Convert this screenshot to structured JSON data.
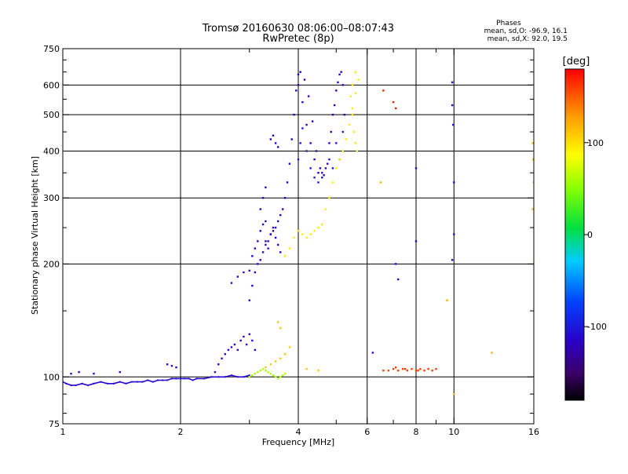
{
  "chart_data": {
    "type": "scatter",
    "title": "Tromsø 20160630 08:06:00–08:07:43",
    "subtitle": "RwPretec (8p)",
    "xlabel": "Frequency [MHz]",
    "ylabel": "Stationary phase Virtual Height [km]",
    "x_scale": "log",
    "y_scale": "log",
    "xlim": [
      1,
      16
    ],
    "ylim": [
      75,
      750
    ],
    "x_ticks": [
      1,
      2,
      4,
      6,
      8,
      10,
      16
    ],
    "x_ticks_minor": [
      3,
      5,
      7,
      9
    ],
    "y_ticks": [
      75,
      100,
      200,
      300,
      400,
      500,
      600,
      750
    ],
    "y_ticks_minor": [
      80,
      90,
      150,
      250,
      350,
      450,
      550,
      650,
      700
    ],
    "grid_x": [
      2,
      4,
      6,
      8,
      10
    ],
    "grid_y": [
      100,
      200,
      300,
      400,
      500,
      600
    ],
    "stats": {
      "heading": "Phases",
      "line_o": "mean, sd,O: -96.9, 16.1",
      "line_x": "mean, sd,X:  92.0, 19.5"
    },
    "colorbar": {
      "label": "[deg]",
      "range": [
        -180,
        180
      ],
      "ticks": [
        100,
        0,
        -100
      ],
      "colormap": "rainbow"
    },
    "series": [
      {
        "type": "line",
        "phase": -110,
        "x": [
          1.0,
          1.02,
          1.05,
          1.08,
          1.12,
          1.16,
          1.2,
          1.25,
          1.3,
          1.35,
          1.4,
          1.45,
          1.5,
          1.55,
          1.6,
          1.65,
          1.7,
          1.75,
          1.8,
          1.85,
          1.9,
          1.95,
          2.0,
          2.05,
          2.1,
          2.15,
          2.2,
          2.3,
          2.4,
          2.5,
          2.6,
          2.7,
          2.8,
          2.9,
          3.0
        ],
        "y": [
          97,
          96,
          95,
          95,
          96,
          95,
          96,
          97,
          96,
          96,
          97,
          96,
          97,
          97,
          97,
          98,
          97,
          98,
          98,
          98,
          99,
          99,
          99,
          99,
          99,
          98,
          99,
          99,
          100,
          100,
          100,
          101,
          100,
          100,
          101
        ]
      },
      {
        "type": "scatter",
        "phase": -110,
        "x": [
          2.45,
          2.5,
          2.55,
          2.6,
          2.65,
          2.7,
          2.75,
          2.8,
          2.85,
          2.9,
          2.95,
          3.0,
          3.05,
          3.1,
          2.7,
          2.8,
          2.9,
          3.0,
          1.85,
          1.9,
          1.95,
          1.05,
          1.1,
          1.2,
          1.4
        ],
        "y": [
          103,
          108,
          112,
          115,
          118,
          120,
          122,
          118,
          125,
          128,
          122,
          130,
          125,
          118,
          178,
          185,
          190,
          192,
          108,
          107,
          106,
          102,
          103,
          102,
          103
        ]
      },
      {
        "type": "scatter",
        "phase": -115,
        "x": [
          3.0,
          3.05,
          3.1,
          3.15,
          3.2,
          3.25,
          3.3,
          3.35,
          3.4,
          3.45,
          3.5,
          3.55,
          3.6,
          3.65,
          3.7,
          3.75,
          3.8,
          3.85,
          3.9,
          3.95,
          4.0,
          4.05,
          3.05,
          3.1,
          3.15,
          3.2,
          3.25,
          3.3,
          3.35,
          3.4,
          3.45,
          3.5,
          3.55,
          3.6,
          3.2,
          3.25,
          3.3,
          3.3,
          3.4,
          3.45,
          3.5,
          3.55
        ],
        "y": [
          160,
          175,
          190,
          200,
          205,
          215,
          225,
          230,
          240,
          245,
          250,
          260,
          270,
          280,
          300,
          330,
          370,
          430,
          500,
          580,
          640,
          650,
          210,
          220,
          230,
          245,
          255,
          230,
          220,
          240,
          250,
          235,
          225,
          215,
          280,
          300,
          320,
          260,
          430,
          440,
          420,
          410
        ]
      },
      {
        "type": "scatter",
        "phase": -120,
        "x": [
          4.0,
          4.1,
          4.2,
          4.3,
          4.4,
          4.5,
          4.6,
          4.7,
          4.8,
          4.9,
          5.0,
          5.1,
          5.2,
          4.15,
          4.25,
          4.35,
          4.45,
          4.55,
          4.65,
          4.75,
          4.85,
          4.95,
          5.05,
          5.15,
          5.25
        ],
        "y": [
          600,
          540,
          470,
          420,
          380,
          350,
          340,
          360,
          420,
          500,
          580,
          640,
          600,
          620,
          560,
          480,
          400,
          360,
          345,
          370,
          450,
          530,
          610,
          650,
          500
        ]
      },
      {
        "type": "scatter",
        "phase": -100,
        "x": [
          4.0,
          4.05,
          4.1,
          4.2,
          4.3,
          4.4,
          4.5,
          4.6,
          4.8,
          5.0,
          5.2,
          5.1,
          4.9
        ],
        "y": [
          380,
          420,
          460,
          400,
          360,
          340,
          330,
          350,
          380,
          420,
          450,
          380,
          360
        ]
      },
      {
        "type": "scatter",
        "phase": 95,
        "x": [
          3.7,
          3.8,
          3.9,
          4.0,
          4.1,
          4.2,
          4.3,
          4.4,
          4.5,
          4.6,
          4.7,
          4.8,
          4.9,
          5.0,
          5.1,
          5.2,
          5.3,
          5.4,
          5.5,
          5.6,
          5.7,
          5.6,
          5.5,
          5.45,
          5.5,
          5.55,
          5.6,
          5.65
        ],
        "y": [
          210,
          220,
          235,
          245,
          240,
          235,
          240,
          245,
          250,
          255,
          280,
          300,
          330,
          360,
          380,
          400,
          430,
          470,
          520,
          570,
          620,
          650,
          600,
          560,
          500,
          450,
          420,
          400
        ]
      },
      {
        "type": "scatter",
        "phase": 60,
        "x": [
          3.0,
          3.05,
          3.1,
          3.15,
          3.2,
          3.25,
          3.3,
          3.35,
          3.4,
          3.45,
          3.5,
          3.55,
          3.6,
          3.65,
          3.7
        ],
        "y": [
          100,
          101,
          102,
          103,
          104,
          105,
          104,
          103,
          102,
          101,
          100,
          99,
          100,
          101,
          102
        ]
      },
      {
        "type": "scatter",
        "phase": 110,
        "x": [
          3.3,
          3.4,
          3.5,
          3.6,
          3.7,
          3.8,
          4.2,
          4.5,
          3.55,
          3.6
        ],
        "y": [
          106,
          108,
          110,
          112,
          115,
          120,
          105,
          104,
          140,
          135
        ]
      },
      {
        "type": "scatter",
        "phase": 160,
        "x": [
          6.8,
          7.0,
          7.2,
          7.4,
          7.6,
          7.8,
          8.0,
          8.2,
          8.4,
          8.6,
          8.8,
          9.0,
          6.6,
          7.1,
          7.5,
          8.1
        ],
        "y": [
          104,
          105,
          104,
          105,
          104,
          105,
          104,
          105,
          104,
          105,
          104,
          105,
          104,
          106,
          105,
          104
        ]
      },
      {
        "type": "scatter",
        "phase": -110,
        "x": [
          6.2,
          9.9,
          9.9,
          9.95,
          10.0,
          10.0,
          9.9,
          8.0,
          7.1,
          7.2,
          8.0
        ],
        "y": [
          116,
          610,
          530,
          470,
          330,
          240,
          205,
          360,
          200,
          182,
          230
        ]
      },
      {
        "type": "scatter",
        "phase": 120,
        "x": [
          16.0,
          15.9,
          15.95,
          16.0,
          15.9,
          16.0,
          15.95,
          12.5,
          6.5,
          10.0,
          9.6
        ],
        "y": [
          450,
          420,
          380,
          330,
          280,
          250,
          200,
          116,
          330,
          90,
          160
        ]
      },
      {
        "type": "scatter",
        "phase": 170,
        "x": [
          6.6,
          7.0,
          7.1
        ],
        "y": [
          580,
          540,
          520
        ]
      }
    ]
  }
}
